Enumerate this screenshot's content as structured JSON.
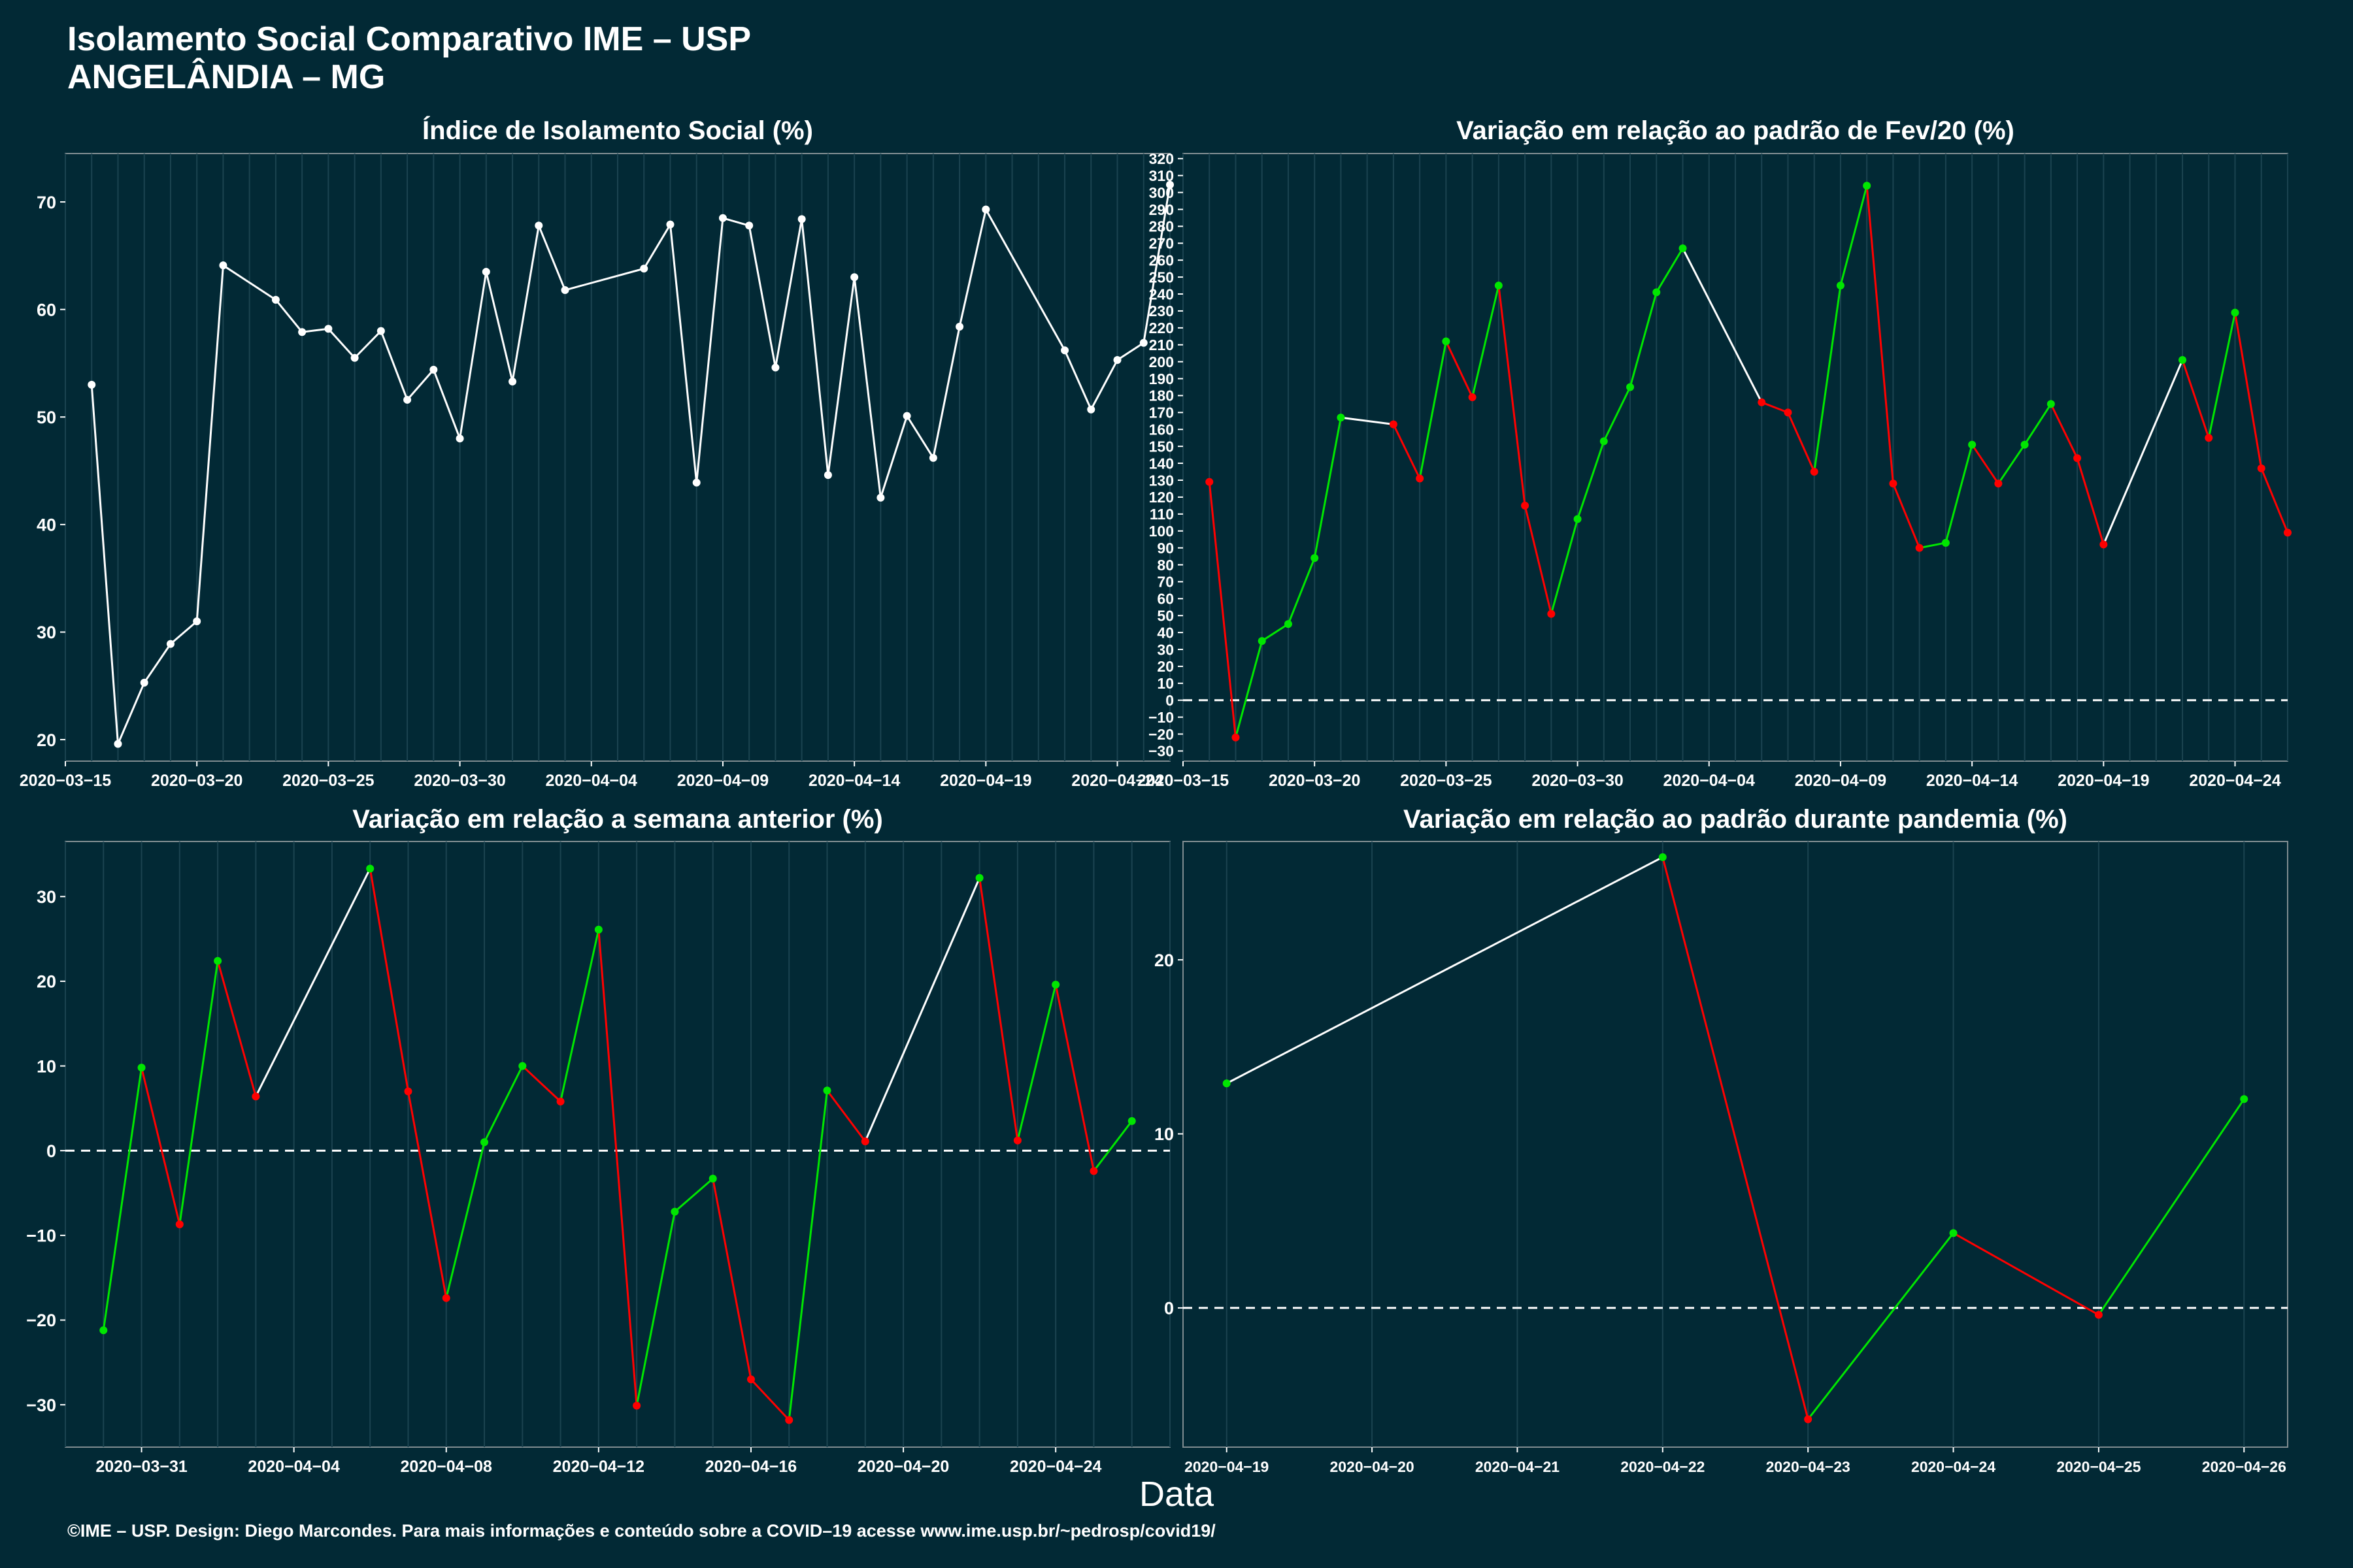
{
  "title_line1": "Isolamento Social Comparativo IME – USP",
  "title_line2": "ANGELÂNDIA – MG",
  "xlabel": "Data",
  "footer": "©IME – USP. Design: Diego Marcondes. Para mais informações e conteúdo sobre a COVID–19 acesse www.ime.usp.br/~pedrosp/covid19/",
  "colors": {
    "background": "#022935",
    "up": "#00e600",
    "down": "#ff0000",
    "neutral": "#ffffff"
  },
  "chart_data": [
    {
      "id": "p1",
      "type": "line",
      "title": "Índice de Isolamento Social (%)",
      "x_start": "2020-03-15",
      "x_end": "2020-04-26",
      "xticks": [
        "2020−03−15",
        "2020−03−20",
        "2020−03−25",
        "2020−03−30",
        "2020−04−04",
        "2020−04−09",
        "2020−04−14",
        "2020−04−19",
        "2020−04−24"
      ],
      "ylim": [
        18,
        74.5
      ],
      "yticks": [
        20,
        30,
        40,
        50,
        60,
        70
      ],
      "zero_line": false,
      "colored": false,
      "points": [
        [
          "2020-03-16",
          53
        ],
        [
          "2020-03-17",
          19.6
        ],
        [
          "2020-03-18",
          25.3
        ],
        [
          "2020-03-19",
          28.9
        ],
        [
          "2020-03-20",
          31
        ],
        [
          "2020-03-21",
          64.1
        ],
        [
          "2020-03-23",
          60.9
        ],
        [
          "2020-03-24",
          57.9
        ],
        [
          "2020-03-25",
          58.2
        ],
        [
          "2020-03-26",
          55.5
        ],
        [
          "2020-03-27",
          58.0
        ],
        [
          "2020-03-28",
          51.6
        ],
        [
          "2020-03-29",
          54.4
        ],
        [
          "2020-03-30",
          48.0
        ],
        [
          "2020-03-31",
          63.5
        ],
        [
          "2020-04-01",
          53.3
        ],
        [
          "2020-04-02",
          67.8
        ],
        [
          "2020-04-03",
          61.8
        ],
        [
          "2020-04-06",
          63.8
        ],
        [
          "2020-04-07",
          67.9
        ],
        [
          "2020-04-08",
          43.9
        ],
        [
          "2020-04-09",
          68.5
        ],
        [
          "2020-04-10",
          67.8
        ],
        [
          "2020-04-11",
          54.6
        ],
        [
          "2020-04-12",
          68.4
        ],
        [
          "2020-04-13",
          44.6
        ],
        [
          "2020-04-14",
          63.0
        ],
        [
          "2020-04-15",
          42.5
        ],
        [
          "2020-04-16",
          50.1
        ],
        [
          "2020-04-17",
          46.2
        ],
        [
          "2020-04-18",
          58.4
        ],
        [
          "2020-04-19",
          69.3
        ],
        [
          "2020-04-22",
          56.2
        ],
        [
          "2020-04-23",
          50.7
        ],
        [
          "2020-04-24",
          55.3
        ],
        [
          "2020-04-25",
          56.9
        ],
        [
          "2020-04-26",
          71.6
        ]
      ]
    },
    {
      "id": "p2",
      "type": "line",
      "title": "Variação em relação ao padrão de Fev/20 (%)",
      "x_start": "2020-03-15",
      "x_end": "2020-04-26",
      "xticks": [
        "2020−03−15",
        "2020−03−20",
        "2020−03−25",
        "2020−03−30",
        "2020−04−04",
        "2020−04−09",
        "2020−04−14",
        "2020−04−19",
        "2020−04−24"
      ],
      "ylim": [
        -36,
        323
      ],
      "yticks": [
        -30,
        -20,
        -10,
        0,
        10,
        20,
        30,
        40,
        50,
        60,
        70,
        80,
        90,
        100,
        110,
        120,
        130,
        140,
        150,
        160,
        170,
        180,
        190,
        200,
        210,
        220,
        230,
        240,
        250,
        260,
        270,
        280,
        290,
        300,
        310,
        320
      ],
      "zero_line": true,
      "colored": true,
      "points": [
        [
          "2020-03-16",
          129
        ],
        [
          "2020-03-17",
          -22
        ],
        [
          "2020-03-18",
          35
        ],
        [
          "2020-03-19",
          45
        ],
        [
          "2020-03-20",
          84
        ],
        [
          "2020-03-21",
          167
        ],
        [
          "2020-03-23",
          163
        ],
        [
          "2020-03-24",
          131
        ],
        [
          "2020-03-25",
          212
        ],
        [
          "2020-03-26",
          179
        ],
        [
          "2020-03-27",
          245
        ],
        [
          "2020-03-28",
          115
        ],
        [
          "2020-03-29",
          51
        ],
        [
          "2020-03-30",
          107
        ],
        [
          "2020-03-31",
          153
        ],
        [
          "2020-04-01",
          185
        ],
        [
          "2020-04-02",
          241
        ],
        [
          "2020-04-03",
          267
        ],
        [
          "2020-04-06",
          176
        ],
        [
          "2020-04-07",
          170
        ],
        [
          "2020-04-08",
          135
        ],
        [
          "2020-04-09",
          245
        ],
        [
          "2020-04-10",
          304
        ],
        [
          "2020-04-11",
          128
        ],
        [
          "2020-04-12",
          90
        ],
        [
          "2020-04-13",
          93
        ],
        [
          "2020-04-14",
          151
        ],
        [
          "2020-04-15",
          128
        ],
        [
          "2020-04-16",
          151
        ],
        [
          "2020-04-17",
          175
        ],
        [
          "2020-04-18",
          143
        ],
        [
          "2020-04-19",
          92
        ],
        [
          "2020-04-22",
          201
        ],
        [
          "2020-04-23",
          155
        ],
        [
          "2020-04-24",
          229
        ],
        [
          "2020-04-25",
          137
        ],
        [
          "2020-04-26",
          99
        ]
      ]
    },
    {
      "id": "p3",
      "type": "line",
      "title": "Variação em relação a semana anterior (%)",
      "x_start": "2020-03-29",
      "x_end": "2020-04-27",
      "xticks": [
        "2020−03−31",
        "2020−04−04",
        "2020−04−08",
        "2020−04−12",
        "2020−04−16",
        "2020−04−20",
        "2020−04−24"
      ],
      "ylim": [
        -35,
        36.5
      ],
      "yticks": [
        -30,
        -20,
        -10,
        0,
        10,
        20,
        30
      ],
      "zero_line": true,
      "colored": true,
      "points": [
        [
          "2020-03-30",
          -21.2
        ],
        [
          "2020-03-31",
          9.8
        ],
        [
          "2020-04-01",
          -8.7
        ],
        [
          "2020-04-02",
          22.4
        ],
        [
          "2020-04-03",
          6.4
        ],
        [
          "2020-04-06",
          33.3
        ],
        [
          "2020-04-07",
          7.0
        ],
        [
          "2020-04-08",
          -17.4
        ],
        [
          "2020-04-09",
          1.0
        ],
        [
          "2020-04-10",
          10.0
        ],
        [
          "2020-04-11",
          5.8
        ],
        [
          "2020-04-12",
          26.1
        ],
        [
          "2020-04-13",
          -30.1
        ],
        [
          "2020-04-14",
          -7.2
        ],
        [
          "2020-04-15",
          -3.3
        ],
        [
          "2020-04-16",
          -27.0
        ],
        [
          "2020-04-17",
          -31.8
        ],
        [
          "2020-04-18",
          7.1
        ],
        [
          "2020-04-19",
          1.1
        ],
        [
          "2020-04-22",
          32.2
        ],
        [
          "2020-04-23",
          1.2
        ],
        [
          "2020-04-24",
          19.6
        ],
        [
          "2020-04-25",
          -2.4
        ],
        [
          "2020-04-26",
          3.5
        ]
      ]
    },
    {
      "id": "p4",
      "type": "line",
      "title": "Variação em relação ao padrão durante pandemia (%)",
      "x_start": "2020-04-18.7",
      "x_end": "2020-04-26.3",
      "xticks": [
        "2020−04−19",
        "2020−04−20",
        "2020−04−21",
        "2020−04−22",
        "2020−04−23",
        "2020−04−24",
        "2020−04−25",
        "2020−04−26"
      ],
      "ylim": [
        -8,
        26.8
      ],
      "yticks": [
        0,
        10,
        20
      ],
      "zero_line": true,
      "colored": true,
      "points": [
        [
          "2020-04-19",
          12.9
        ],
        [
          "2020-04-22",
          25.9
        ],
        [
          "2020-04-23",
          -6.4
        ],
        [
          "2020-04-24",
          4.3
        ],
        [
          "2020-04-25",
          -0.4
        ],
        [
          "2020-04-26",
          12.0
        ]
      ]
    }
  ]
}
